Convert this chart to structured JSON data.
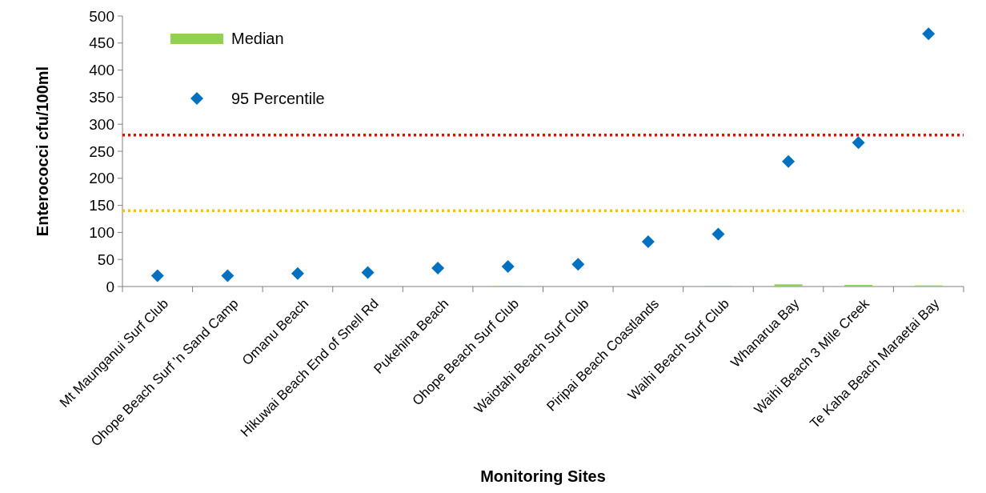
{
  "chart_data": {
    "type": "bar",
    "xlabel": "Monitoring Sites",
    "ylabel": "Enterococci cfu/100ml",
    "categories": [
      "Mt Maunganui Surf Club",
      "Ohope Beach Surf 'n Sand Camp",
      "Omanu Beach",
      "Hikuwai Beach End of Snell Rd",
      "Pukehina Beach",
      "Ohope Beach Surf Club",
      "Waiotahi Beach Surf Club",
      "Piripai Beach Coastlands",
      "Waihi Beach Surf Club",
      "Whanarua Bay",
      "Waihi Beach 3 Mile Creek",
      "Te Kaha Beach Maraetai Bay"
    ],
    "series": [
      {
        "name": "Median",
        "color": "#92d050",
        "values": [
          null,
          null,
          null,
          null,
          null,
          1,
          null,
          null,
          1,
          4,
          3,
          2
        ]
      },
      {
        "name": "95 Percentile",
        "type": "scatter",
        "color": "#0070c0",
        "marker": "diamond",
        "values": [
          20,
          20,
          24,
          26,
          34,
          37,
          41,
          83,
          97,
          231,
          266,
          467
        ]
      }
    ],
    "ylim": [
      0,
      500
    ],
    "yticks": [
      0,
      50,
      100,
      150,
      200,
      250,
      300,
      350,
      400,
      450,
      500
    ],
    "grid": false,
    "legend": "top left",
    "ref_lines": [
      {
        "axis": "y",
        "value": 280,
        "color": "#ff0000",
        "line_style": "dotted"
      },
      {
        "axis": "y",
        "value": 140,
        "color": "#ffc000",
        "line_style": "dotted"
      }
    ]
  }
}
